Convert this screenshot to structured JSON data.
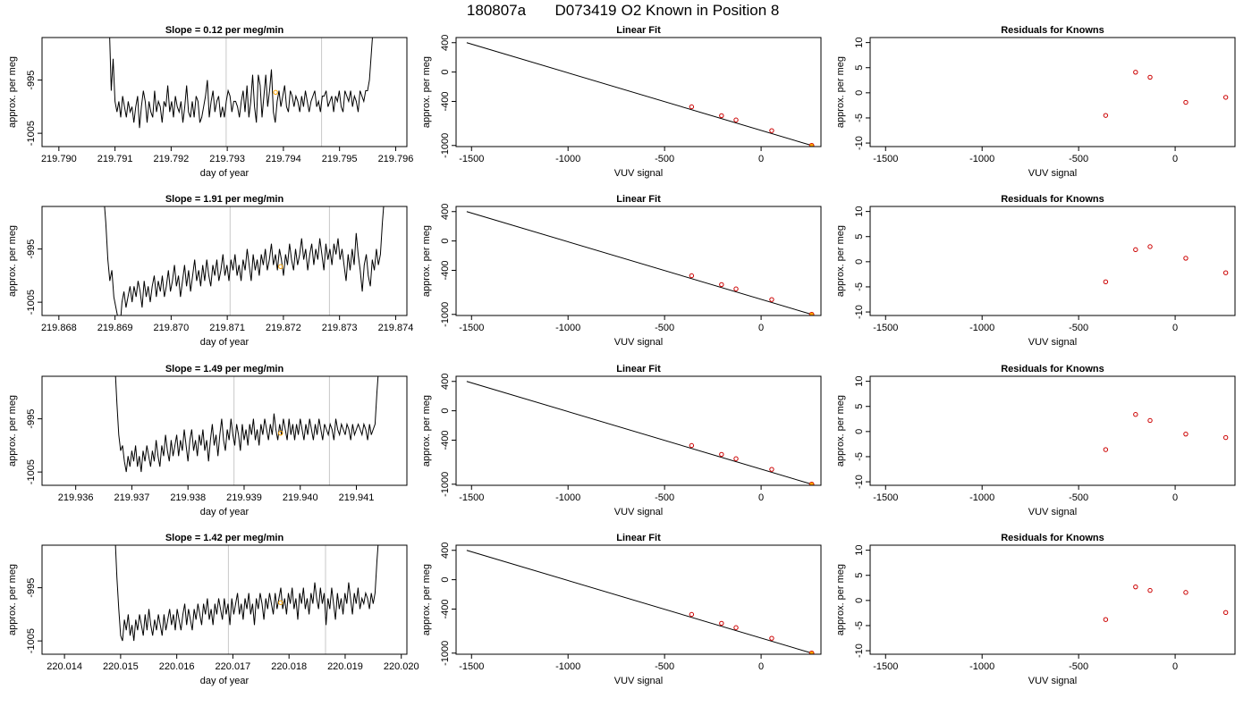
{
  "figure": {
    "title_parts": [
      "180807a",
      "D073419",
      "O2 Known in Position  8"
    ],
    "colors": {
      "trace": "#000000",
      "vline": "#c8c8c8",
      "marker_orange": "#ffa500",
      "marker_red": "#cc0000",
      "fit_line": "#000000"
    }
  },
  "chart_data": [
    {
      "type": "line",
      "row": 1,
      "title": "Slope =  0.12  per meg/min",
      "xlabel": "day of year",
      "ylabel": "approx. per meg",
      "xlim": [
        219.7897,
        219.7962
      ],
      "ylim": [
        -1007.5,
        -987
      ],
      "xticks": [
        "219.790",
        "219.791",
        "219.792",
        "219.793",
        "219.794",
        "219.795",
        "219.796"
      ],
      "xtick_values": [
        219.79,
        219.791,
        219.792,
        219.793,
        219.794,
        219.795,
        219.796
      ],
      "yticks": [
        "-995",
        "-1005"
      ],
      "ytick_values": [
        -995,
        -1005
      ],
      "vlines": [
        219.79298,
        219.79468
      ],
      "x_start": 219.7909,
      "x_end": 219.7956,
      "series_values": [
        -985,
        -997,
        -991,
        -999,
        -1001,
        -999,
        -1002,
        -998,
        -1000,
        -1002,
        -999,
        -1001,
        -1000,
        -1003,
        -1000,
        -998,
        -1004,
        -1000,
        -997,
        -999,
        -1003,
        -999,
        -1001,
        -1002,
        -997,
        -1001,
        -999,
        -1000,
        -1003,
        -999,
        -1000,
        -996,
        -1001,
        -999,
        -1002,
        -998,
        -1000,
        -1001,
        -999,
        -1003,
        -1000,
        -996,
        -1001,
        -1002,
        -999,
        -1002,
        -998,
        -999,
        -1003,
        -1002,
        -1000,
        -998,
        -995,
        -1002,
        -999,
        -997,
        -1001,
        -999,
        -998,
        -1002,
        -1000,
        -1002,
        -999,
        -997,
        -998,
        -1001,
        -999,
        -999,
        -1000,
        -1002,
        -999,
        -997,
        -1001,
        -996,
        -1002,
        -999,
        -994,
        -1000,
        -1003,
        -994,
        -996,
        -1002,
        -998,
        -994,
        -1000,
        -997,
        -993,
        -1001,
        -1003,
        -999,
        -997,
        -1000,
        -998,
        -996,
        -1000,
        -1001,
        -997,
        -998,
        -1000,
        -998,
        -999,
        -1001,
        -998,
        -1000,
        -997,
        -999,
        -1001,
        -999,
        -998,
        -997,
        -1000,
        -999,
        -1001,
        -998,
        -998,
        -997,
        -1000,
        -999,
        -998,
        -1001,
        -998,
        -999,
        -997,
        -1000,
        -1001,
        -997,
        -998,
        -999,
        -997,
        -1000,
        -998,
        -999,
        -1001,
        -997,
        -998,
        -999,
        -997,
        -997,
        -995,
        -990,
        -985
      ],
      "marker": [
        219.79386,
        -997.3
      ]
    },
    {
      "type": "scatter",
      "row": 1,
      "title": "Linear Fit",
      "xlabel": "VUV signal",
      "ylabel": "approx. per meg",
      "xlim": [
        -1580,
        310
      ],
      "ylim": [
        -1015,
        470
      ],
      "xticks": [
        "-1500",
        "-1000",
        "-500",
        "0"
      ],
      "xtick_values": [
        -1500,
        -1000,
        -500,
        0
      ],
      "yticks": [
        "400",
        "0",
        "-400",
        "-1000"
      ],
      "ytick_values": [
        400,
        0,
        -400,
        -1000
      ],
      "fit_line": [
        [
          -1525,
          400
        ],
        [
          262,
          -1000
        ]
      ],
      "points": [
        [
          -360,
          -473
        ],
        [
          -205,
          -594
        ],
        [
          -130,
          -653
        ],
        [
          55,
          -798
        ],
        [
          262,
          -1000
        ]
      ],
      "highlight": [
        262,
        -1000
      ]
    },
    {
      "type": "scatter",
      "row": 1,
      "title": "Residuals for Knowns",
      "xlabel": "VUV signal",
      "ylabel": "approx. per meg",
      "xlim": [
        -1580,
        310
      ],
      "ylim": [
        -10.7,
        11
      ],
      "xticks": [
        "-1500",
        "-1000",
        "-500",
        "0"
      ],
      "xtick_values": [
        -1500,
        -1000,
        -500,
        0
      ],
      "yticks": [
        "10",
        "5",
        "0",
        "-5",
        "-10"
      ],
      "ytick_values": [
        10,
        5,
        0,
        -5,
        -10
      ],
      "points": [
        [
          -360,
          -4.5
        ],
        [
          -205,
          4.1
        ],
        [
          -130,
          3.1
        ],
        [
          55,
          -1.9
        ],
        [
          262,
          -0.9
        ]
      ]
    },
    {
      "type": "line",
      "row": 2,
      "title": "Slope =  1.91  per meg/min",
      "xlabel": "day of year",
      "ylabel": "approx. per meg",
      "xlim": [
        219.8677,
        219.8742
      ],
      "ylim": [
        -1007.5,
        -987
      ],
      "xticks": [
        "219.868",
        "219.869",
        "219.870",
        "219.871",
        "219.872",
        "219.873",
        "219.874"
      ],
      "xtick_values": [
        219.868,
        219.869,
        219.87,
        219.871,
        219.872,
        219.873,
        219.874
      ],
      "yticks": [
        "-995",
        "-1005"
      ],
      "ytick_values": [
        -995,
        -1005
      ],
      "vlines": [
        219.87105,
        219.87282
      ],
      "x_start": 219.8688,
      "x_end": 219.8738,
      "series_values": [
        -985,
        -990,
        -997,
        -1001,
        -999,
        -1004,
        -1006,
        -1008,
        -1010,
        -1005,
        -1003,
        -1006,
        -1004,
        -1002,
        -1005,
        -1002,
        -1004,
        -1001,
        -1003,
        -1006,
        -1001,
        -1004,
        -1002,
        -1005,
        -1002,
        -1000,
        -1004,
        -1001,
        -1003,
        -1000,
        -1004,
        -1002,
        -999,
        -1003,
        -1001,
        -998,
        -1002,
        -1000,
        -1004,
        -1001,
        -998,
        -1002,
        -999,
        -1003,
        -1000,
        -997,
        -1001,
        -999,
        -1002,
        -998,
        -1001,
        -997,
        -1000,
        -1002,
        -998,
        -1000,
        -997,
        -1001,
        -999,
        -996,
        -1000,
        -998,
        -1001,
        -997,
        -999,
        -996,
        -1000,
        -998,
        -1001,
        -997,
        -999,
        -995,
        -998,
        -1001,
        -996,
        -999,
        -997,
        -1000,
        -996,
        -998,
        -995,
        -999,
        -997,
        -994,
        -998,
        -996,
        -999,
        -995,
        -997,
        -1000,
        -996,
        -998,
        -994,
        -997,
        -999,
        -995,
        -998,
        -996,
        -993,
        -997,
        -995,
        -999,
        -996,
        -994,
        -998,
        -995,
        -997,
        -993,
        -996,
        -999,
        -994,
        -997,
        -995,
        -998,
        -994,
        -996,
        -993,
        -997,
        -995,
        -998,
        -1001,
        -996,
        -999,
        -995,
        -998,
        -992,
        -996,
        -999,
        -1003,
        -998,
        -996,
        -1000,
        -1002,
        -997,
        -999,
        -995,
        -998,
        -996,
        -990,
        -985
      ],
      "marker": [
        219.87195,
        -998.3
      ]
    },
    {
      "type": "scatter",
      "row": 2,
      "title": "Linear Fit",
      "xlabel": "VUV signal",
      "ylabel": "approx. per meg",
      "xlim": [
        -1580,
        310
      ],
      "ylim": [
        -1015,
        470
      ],
      "xticks": [
        "-1500",
        "-1000",
        "-500",
        "0"
      ],
      "xtick_values": [
        -1500,
        -1000,
        -500,
        0
      ],
      "yticks": [
        "400",
        "0",
        "-400",
        "-1000"
      ],
      "ytick_values": [
        400,
        0,
        -400,
        -1000
      ],
      "fit_line": [
        [
          -1525,
          400
        ],
        [
          262,
          -1000
        ]
      ],
      "points": [
        [
          -360,
          -473
        ],
        [
          -205,
          -594
        ],
        [
          -130,
          -653
        ],
        [
          55,
          -798
        ],
        [
          262,
          -1000
        ]
      ],
      "highlight": [
        262,
        -1000
      ]
    },
    {
      "type": "scatter",
      "row": 2,
      "title": "Residuals for Knowns",
      "xlabel": "VUV signal",
      "ylabel": "approx. per meg",
      "xlim": [
        -1580,
        310
      ],
      "ylim": [
        -10.7,
        11
      ],
      "xticks": [
        "-1500",
        "-1000",
        "-500",
        "0"
      ],
      "xtick_values": [
        -1500,
        -1000,
        -500,
        0
      ],
      "yticks": [
        "10",
        "5",
        "0",
        "-5",
        "-10"
      ],
      "ytick_values": [
        10,
        5,
        0,
        -5,
        -10
      ],
      "points": [
        [
          -360,
          -4.0
        ],
        [
          -205,
          2.4
        ],
        [
          -130,
          3.0
        ],
        [
          55,
          0.7
        ],
        [
          262,
          -2.2
        ]
      ]
    },
    {
      "type": "line",
      "row": 3,
      "title": "Slope =  1.49  per meg/min",
      "xlabel": "day of year",
      "ylabel": "approx. per meg",
      "xlim": [
        219.9354,
        219.9419
      ],
      "ylim": [
        -1007.5,
        -987
      ],
      "xticks": [
        "219.936",
        "219.937",
        "219.938",
        "219.939",
        "219.940",
        "219.941"
      ],
      "xtick_values": [
        219.936,
        219.937,
        219.938,
        219.939,
        219.94,
        219.941
      ],
      "yticks": [
        "-995",
        "-1005"
      ],
      "ytick_values": [
        -995,
        -1005
      ],
      "vlines": [
        219.93882,
        219.94052
      ],
      "x_start": 219.9367,
      "x_end": 219.9414,
      "series_values": [
        -985,
        -992,
        -998,
        -1001,
        -1000,
        -1003,
        -1005,
        -1002,
        -1004,
        -1001,
        -1003,
        -1000,
        -1004,
        -1002,
        -1005,
        -1001,
        -1003,
        -1000,
        -1002,
        -1004,
        -1001,
        -1003,
        -999,
        -1002,
        -1004,
        -1000,
        -1002,
        -998,
        -1001,
        -1003,
        -999,
        -1002,
        -1000,
        -998,
        -1002,
        -999,
        -1001,
        -997,
        -1000,
        -1003,
        -999,
        -997,
        -1001,
        -999,
        -1002,
        -998,
        -1000,
        -997,
        -1001,
        -999,
        -1003,
        -999,
        -996,
        -1000,
        -998,
        -1002,
        -998,
        -995,
        -999,
        -1001,
        -997,
        -999,
        -995,
        -998,
        -1000,
        -996,
        -998,
        -1001,
        -996,
        -999,
        -997,
        -1000,
        -996,
        -998,
        -995,
        -999,
        -997,
        -1000,
        -996,
        -998,
        -995,
        -997,
        -999,
        -996,
        -998,
        -994,
        -997,
        -999,
        -996,
        -998,
        -995,
        -997,
        -999,
        -995,
        -998,
        -996,
        -999,
        -996,
        -998,
        -995,
        -997,
        -999,
        -996,
        -998,
        -995,
        -997,
        -999,
        -996,
        -998,
        -995,
        -997,
        -999,
        -996,
        -997,
        -998,
        -996,
        -997,
        -999,
        -995,
        -997,
        -998,
        -996,
        -997,
        -998,
        -996,
        -997,
        -999,
        -996,
        -998,
        -997,
        -996,
        -997,
        -998,
        -996,
        -997,
        -999,
        -996,
        -998,
        -997,
        -996,
        -990,
        -985
      ],
      "marker": [
        219.93965,
        -997.7
      ]
    },
    {
      "type": "scatter",
      "row": 3,
      "title": "Linear Fit",
      "xlabel": "VUV signal",
      "ylabel": "approx. per meg",
      "xlim": [
        -1580,
        310
      ],
      "ylim": [
        -1015,
        470
      ],
      "xticks": [
        "-1500",
        "-1000",
        "-500",
        "0"
      ],
      "xtick_values": [
        -1500,
        -1000,
        -500,
        0
      ],
      "yticks": [
        "400",
        "0",
        "-400",
        "-1000"
      ],
      "ytick_values": [
        400,
        0,
        -400,
        -1000
      ],
      "fit_line": [
        [
          -1525,
          400
        ],
        [
          262,
          -1000
        ]
      ],
      "points": [
        [
          -360,
          -473
        ],
        [
          -205,
          -594
        ],
        [
          -130,
          -653
        ],
        [
          55,
          -798
        ],
        [
          262,
          -1000
        ]
      ],
      "highlight": [
        262,
        -1000
      ]
    },
    {
      "type": "scatter",
      "row": 3,
      "title": "Residuals for Knowns",
      "xlabel": "VUV signal",
      "ylabel": "approx. per meg",
      "xlim": [
        -1580,
        310
      ],
      "ylim": [
        -10.7,
        11
      ],
      "xticks": [
        "-1500",
        "-1000",
        "-500",
        "0"
      ],
      "xtick_values": [
        -1500,
        -1000,
        -500,
        0
      ],
      "yticks": [
        "10",
        "5",
        "0",
        "-5",
        "-10"
      ],
      "ytick_values": [
        10,
        5,
        0,
        -5,
        -10
      ],
      "points": [
        [
          -360,
          -3.6
        ],
        [
          -205,
          3.4
        ],
        [
          -130,
          2.2
        ],
        [
          55,
          -0.5
        ],
        [
          262,
          -1.2
        ]
      ]
    },
    {
      "type": "line",
      "row": 4,
      "title": "Slope =  1.42  per meg/min",
      "xlabel": "day of year",
      "ylabel": "approx. per meg",
      "xlim": [
        220.0136,
        220.0201
      ],
      "ylim": [
        -1007.5,
        -987
      ],
      "xticks": [
        "220.014",
        "220.015",
        "220.016",
        "220.017",
        "220.018",
        "220.019",
        "220.020"
      ],
      "xtick_values": [
        220.014,
        220.015,
        220.016,
        220.017,
        220.018,
        220.019,
        220.02
      ],
      "yticks": [
        "-995",
        "-1005"
      ],
      "ytick_values": [
        -995,
        -1005
      ],
      "vlines": [
        220.01692,
        220.01865
      ],
      "x_start": 220.0149,
      "x_end": 220.0196,
      "series_values": [
        -985,
        -993,
        -999,
        -1004,
        -1005,
        -1001,
        -1003,
        -1000,
        -1004,
        -1002,
        -1005,
        -1001,
        -1003,
        -1000,
        -1002,
        -1004,
        -1000,
        -1003,
        -999,
        -1002,
        -1004,
        -1001,
        -1003,
        -1000,
        -1002,
        -1004,
        -1000,
        -1003,
        -1001,
        -999,
        -1002,
        -1000,
        -1003,
        -999,
        -1001,
        -1003,
        -1000,
        -998,
        -1002,
        -999,
        -1001,
        -1003,
        -999,
        -1001,
        -998,
        -1000,
        -1002,
        -998,
        -1000,
        -997,
        -1001,
        -999,
        -1002,
        -998,
        -1000,
        -997,
        -999,
        -1001,
        -997,
        -1000,
        -998,
        -1002,
        -997,
        -1000,
        -998,
        -996,
        -1000,
        -998,
        -1001,
        -997,
        -999,
        -996,
        -1000,
        -998,
        -1002,
        -997,
        -999,
        -996,
        -998,
        -1001,
        -997,
        -999,
        -996,
        -998,
        -1000,
        -996,
        -999,
        -997,
        -995,
        -999,
        -997,
        -1000,
        -996,
        -998,
        -995,
        -999,
        -997,
        -1001,
        -996,
        -998,
        -995,
        -999,
        -997,
        -1000,
        -996,
        -998,
        -994,
        -997,
        -999,
        -995,
        -998,
        -996,
        -1002,
        -997,
        -999,
        -995,
        -998,
        -1001,
        -996,
        -999,
        -997,
        -1000,
        -996,
        -998,
        -994,
        -997,
        -1000,
        -996,
        -998,
        -995,
        -999,
        -997,
        -998,
        -996,
        -997,
        -999,
        -996,
        -998,
        -996,
        -990,
        -985
      ],
      "marker": [
        220.01785,
        -997.8
      ]
    },
    {
      "type": "scatter",
      "row": 4,
      "title": "Linear Fit",
      "xlabel": "VUV signal",
      "ylabel": "approx. per meg",
      "xlim": [
        -1580,
        310
      ],
      "ylim": [
        -1015,
        470
      ],
      "xticks": [
        "-1500",
        "-1000",
        "-500",
        "0"
      ],
      "xtick_values": [
        -1500,
        -1000,
        -500,
        0
      ],
      "yticks": [
        "400",
        "0",
        "-400",
        "-1000"
      ],
      "ytick_values": [
        400,
        0,
        -400,
        -1000
      ],
      "fit_line": [
        [
          -1525,
          400
        ],
        [
          262,
          -1000
        ]
      ],
      "points": [
        [
          -360,
          -473
        ],
        [
          -205,
          -594
        ],
        [
          -130,
          -653
        ],
        [
          55,
          -798
        ],
        [
          262,
          -1000
        ]
      ],
      "highlight": [
        262,
        -1000
      ]
    },
    {
      "type": "scatter",
      "row": 4,
      "title": "Residuals for Knowns",
      "xlabel": "VUV signal",
      "ylabel": "approx. per meg",
      "xlim": [
        -1580,
        310
      ],
      "ylim": [
        -10.7,
        11
      ],
      "xticks": [
        "-1500",
        "-1000",
        "-500",
        "0"
      ],
      "xtick_values": [
        -1500,
        -1000,
        -500,
        0
      ],
      "yticks": [
        "10",
        "5",
        "0",
        "-5",
        "-10"
      ],
      "ytick_values": [
        10,
        5,
        0,
        -5,
        -10
      ],
      "points": [
        [
          -360,
          -3.8
        ],
        [
          -205,
          2.7
        ],
        [
          -130,
          2.0
        ],
        [
          55,
          1.6
        ],
        [
          262,
          -2.4
        ]
      ]
    }
  ]
}
